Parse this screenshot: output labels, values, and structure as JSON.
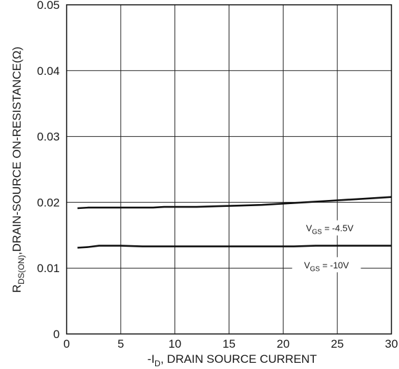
{
  "chart_data": {
    "type": "line",
    "xlabel": {
      "pre": "-I",
      "sub": "D",
      "post": ", DRAIN SOURCE CURRENT"
    },
    "ylabel": {
      "pre": "R",
      "sub": "DS(ON)",
      "post": ",DRAIN-SOURCE ON-RESISTANCE(Ω)"
    },
    "xlim": [
      0,
      30
    ],
    "ylim": [
      0,
      0.05
    ],
    "x_ticks": [
      {
        "value": 0,
        "label": "0"
      },
      {
        "value": 5,
        "label": "5"
      },
      {
        "value": 10,
        "label": "10"
      },
      {
        "value": 15,
        "label": "15"
      },
      {
        "value": 20,
        "label": "20"
      },
      {
        "value": 25,
        "label": "25"
      },
      {
        "value": 30,
        "label": "30"
      }
    ],
    "y_ticks": [
      {
        "value": 0,
        "label": "0"
      },
      {
        "value": 0.01,
        "label": "0.01"
      },
      {
        "value": 0.02,
        "label": "0.02"
      },
      {
        "value": 0.03,
        "label": "0.03"
      },
      {
        "value": 0.04,
        "label": "0.04"
      },
      {
        "value": 0.05,
        "label": "0.05"
      }
    ],
    "grid": true,
    "series": [
      {
        "label": {
          "pre": "V",
          "sub": "GS",
          "post": " = -4.5V"
        },
        "x": [
          1,
          2,
          4,
          6,
          8,
          9,
          10,
          12,
          14,
          16,
          18,
          20,
          22,
          24,
          26,
          28,
          30
        ],
        "y": [
          0.0191,
          0.0192,
          0.0192,
          0.0192,
          0.0192,
          0.0193,
          0.0193,
          0.0193,
          0.0194,
          0.0195,
          0.0196,
          0.0198,
          0.02,
          0.0202,
          0.0204,
          0.0206,
          0.0208
        ]
      },
      {
        "label": {
          "pre": "V",
          "sub": "GS",
          "post": " = -10V"
        },
        "x": [
          1,
          2,
          3,
          5,
          7,
          9,
          11,
          13,
          15,
          17,
          19,
          21,
          23,
          25,
          27,
          30
        ],
        "y": [
          0.0131,
          0.0132,
          0.0134,
          0.0134,
          0.0133,
          0.0133,
          0.0133,
          0.0133,
          0.0133,
          0.0133,
          0.0133,
          0.0133,
          0.0134,
          0.0134,
          0.0134,
          0.0134
        ]
      }
    ]
  }
}
